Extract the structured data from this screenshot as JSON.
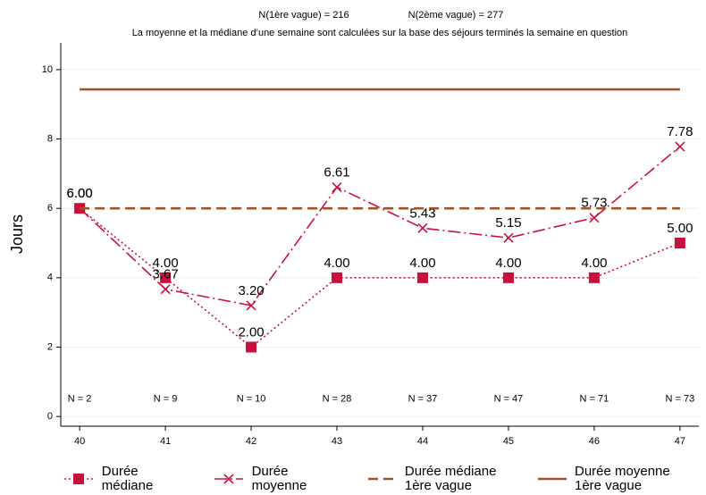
{
  "chart_data": {
    "type": "line",
    "subtitle_left": "N(1ère vague) = 216",
    "subtitle_right": "N(2ème vague) = 277",
    "note": "La moyenne et la médiane d’une semaine sont calculées sur la base des séjours terminés la semaine en question",
    "y_label": "Jours",
    "x": [
      40,
      41,
      42,
      43,
      44,
      45,
      46,
      47
    ],
    "xlim": [
      39.78,
      47.22
    ],
    "xticks": [
      40,
      41,
      42,
      43,
      44,
      45,
      46,
      47
    ],
    "ylim": [
      -0.28,
      10.77
    ],
    "yticks": [
      0,
      2,
      4,
      6,
      8,
      10
    ],
    "grid": true,
    "annotations": [
      "N = 2",
      "N = 9",
      "N = 10",
      "N = 28",
      "N = 37",
      "N = 47",
      "N = 71",
      "N = 73"
    ],
    "series": [
      {
        "name": "Durée médiane",
        "color": "#c8103e",
        "style": "dotted",
        "marker": "square",
        "values": [
          6,
          4,
          2,
          4,
          4,
          4,
          4,
          5
        ],
        "value_labels": [
          "6.00",
          "4.00",
          "2.00",
          "4.00",
          "4.00",
          "4.00",
          "4.00",
          "5.00"
        ]
      },
      {
        "name": "Durée moyenne",
        "color": "#c8103e",
        "style": "dashdot",
        "marker": "x",
        "values": [
          6,
          3.67,
          3.2,
          6.61,
          5.43,
          5.15,
          5.73,
          7.78
        ],
        "value_labels": [
          "6.00",
          "3.67",
          "3.20",
          "6.61",
          "5.43",
          "5.15",
          "5.73",
          "7.78"
        ]
      },
      {
        "name": "Durée médiane 1ère vague",
        "color": "#a0522d",
        "style": "dashed",
        "values": [
          6,
          6,
          6,
          6,
          6,
          6,
          6,
          6
        ]
      },
      {
        "name": "Durée moyenne 1ère vague",
        "color": "#a0522d",
        "style": "solid",
        "values": [
          9.43,
          9.43,
          9.43,
          9.43,
          9.43,
          9.43,
          9.43,
          9.43
        ]
      }
    ]
  }
}
